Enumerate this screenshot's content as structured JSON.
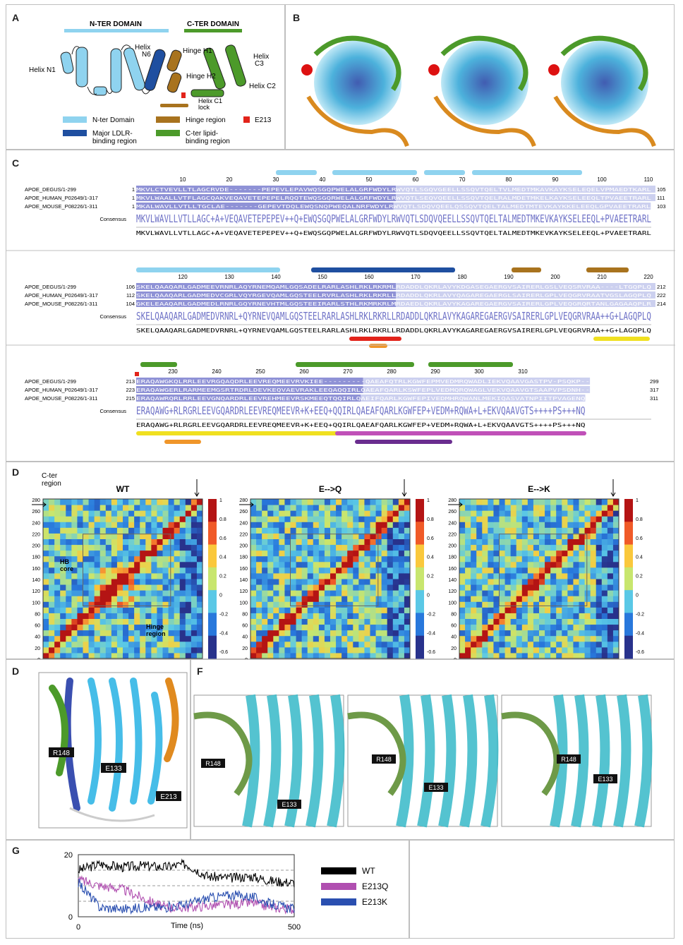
{
  "panels": {
    "A": {
      "label": "A",
      "nter_domain": "N-TER DOMAIN",
      "cter_domain": "C-TER DOMAIN",
      "helix_n1": "Helix N1",
      "helix_n6a": "Helix",
      "helix_n6b": "N6",
      "hinge_h1": "Hinge H1",
      "hinge_h2": "Hinge H2",
      "helix_c3a": "Helix",
      "helix_c3b": "C3",
      "helix_c2": "Helix C2",
      "helix_c1a": "Helix C1",
      "helix_c1b": "lock",
      "legend": [
        {
          "label": "N-ter Domain",
          "color": "#8fd3ef"
        },
        {
          "label": "Hinge region",
          "color": "#a8731e"
        },
        {
          "label": "E213",
          "color": "#e2231a"
        },
        {
          "label": "Major LDLR-",
          "label2": "binding region",
          "color": "#1f4fa0"
        },
        {
          "label": "C-ter lipid-",
          "label2": "binding region",
          "color": "#4c9a2a"
        }
      ]
    },
    "B": {
      "label": "B"
    },
    "C": {
      "label": "C",
      "blocks": [
        {
          "ruler": [
            "10",
            "20",
            "30",
            "40",
            "50",
            "60",
            "70",
            "80",
            "90",
            "100",
            "110"
          ],
          "rows": [
            {
              "name": "APOE_DEGUS/1-299",
              "start": "1",
              "seq": "MKVLCTVEVLLTLAGCRVDE-------PEPEVLEPAVWQSGQPWELALGRFWDYLRWVQTLSGQVGEELLSSQVTQELTVLMEDTMKAVKAYKSELEQELVPMAEDTKARL",
              "end": "105"
            },
            {
              "name": "APOE_HUMAN_P02649/1-317",
              "start": "1",
              "seq": "MKVLWAALLVTFLAGCQAKVEQAVETEPEPELRQQTEWQSGQRWELALGRFWDYLRWVQTLSEQVQEELLSSQVTQELRALMDETMKELKAYKSELEEQLTPVAEETRARL",
              "end": "111"
            },
            {
              "name": "APOE_MOUSE_P08226/1-311",
              "start": "1",
              "seq": "MKALWAVLLVTLLTGCLAE-------GEPEVTDQLEWQSNQPWEQALNRFWDYLRWVQTLSDQVQEELQSSQVTQELTALMEDTMTEVKAYKKELEEQLGPVAEETRARL",
              "end": "103"
            }
          ],
          "consensus_label": "Consensus",
          "consensus": "MKVLWAVLLVTLLAGC+A+VEQAVETEPEPEV++Q+EWQSGQPWELALGRFWDYLRWVQTLSDQVQEELLSSQVTQELTALMEDTMKEVKAYKSELEEQL+PVAEETRARL"
        },
        {
          "ruler": [
            "120",
            "130",
            "140",
            "150",
            "160",
            "170",
            "180",
            "190",
            "200",
            "210",
            "220"
          ],
          "rows": [
            {
              "name": "APOE_DEGUS/1-299",
              "start": "106",
              "seq": "SKELQAAQARLGADMEEVRNRLAQYRNEMQAMLGQSADELRARLASHLRKLRKRMLRDADDLQKRLAVYKDGASEGAERGVSAIRERLGSLVEQSRVRAA----LTGQPLQ",
              "end": "212"
            },
            {
              "name": "APOE_HUMAN_P02649/1-317",
              "start": "112",
              "seq": "SKELQAAQARLGADMEDVCGRLVQYRGEVQAMLGQSTEELRVRLASHLRKLRKRLLRDADDLQKRLAVYQAGAREGAERGLSAIRERLGPLVEQGRVRAATVGSLAGQPLQ",
              "end": "222"
            },
            {
              "name": "APOE_MOUSE_P08226/1-311",
              "start": "104",
              "seq": "GKELEAAQARLGADMEDLRNRLGQYRNEVHTMLGQSTEEIRARLSTHLRKMRKRLMRDAEDLQKRLAVYKAGAREGAERGVSAIRERLGPLVEQGRQRTANLGAGAAQPLR",
              "end": "214"
            }
          ],
          "consensus_label": "Consensus",
          "consensus": "SKELQAAQARLGADMEDVRNRL+QYRNEVQAMLGQSTEELRARLASHLRKLRKRLLRDADDLQKRLAVYKAGAREGAERGVSAIRERLGPLVEQGRVRAA++G+LAGQPLQ"
        },
        {
          "ruler": [
            "230",
            "240",
            "250",
            "260",
            "270",
            "280",
            "290",
            "300",
            "310"
          ],
          "rows": [
            {
              "name": "APOE_DEGUS/1-299",
              "start": "213",
              "seq": "ERAQAWGKQLRRLEEVRGQAQDRLEEVREQMEEVRVKIEE---------QAEAFQTRLKGWFEPMVEDMRQWADLIEKVQAAVGASTPV-PSQKP--",
              "end": "299"
            },
            {
              "name": "APOE_HUMAN_P02649/1-317",
              "start": "223",
              "seq": "ERAQAWGERLRARMEEMGSRTRDRLDEVKEQVAEVRAKLEEQAQQIRLQAEAFQARLKSWFEPLVEDMQRQWAGLVEKVQAAVGTSAAPVPSDNH--",
              "end": "317"
            },
            {
              "name": "APOE_MOUSE_P08226/1-311",
              "start": "215",
              "seq": "ERAQAWRQRLRRLEEVGNQARDRLEEVREHMEEVRSKMEEQTQQIRLQAEIFQARLKGWFEPIVEDMHRQWANLMEKIQASVATNPIITPVAGENQ",
              "end": "311"
            }
          ],
          "consensus_label": "Consensus",
          "consensus": "ERAQAWG+RLRGRLEEVGQARDRLEEVREQMEEVR+K+EEQ+QQIRLQAEAFQARLKGWFEP+VEDM+RQWA+L+EKVQAAVGTS++++PS+++NQ"
        }
      ]
    },
    "D": {
      "label": "D",
      "region_label_a": "C-ter",
      "region_label_b": "region",
      "hb_a": "HB",
      "hb_b": "core",
      "hinge_a": "Hinge",
      "hinge_b": "region",
      "titles": [
        "WT",
        "E-->Q",
        "E-->K"
      ],
      "y_ticks": [
        "280",
        "260",
        "240",
        "220",
        "200",
        "180",
        "160",
        "140",
        "120",
        "100",
        "80",
        "60",
        "40",
        "20",
        "0"
      ],
      "x_ticks": [
        "0",
        "20",
        "40",
        "60",
        "80",
        "100",
        "120",
        "140",
        "160",
        "180",
        "200",
        "220",
        "240",
        "260",
        "280"
      ],
      "cbar_ticks": [
        "1",
        "0.8",
        "0.6",
        "0.4",
        "0.2",
        "0",
        "-0.2",
        "-0.4",
        "-0.6"
      ]
    },
    "D2": {
      "label": "D",
      "r148": "R148",
      "e133": "E133",
      "e213": "E213"
    },
    "F": {
      "label": "F",
      "r148": "R148",
      "e133": "E133"
    },
    "G": {
      "label": "G",
      "y_top": "20",
      "y_bottom": "0",
      "x_left": "0",
      "x_right": "500",
      "xlabel": "Time (ns)",
      "legend": [
        {
          "label": "WT",
          "color": "#000000"
        },
        {
          "label": "E213Q",
          "color": "#b04fb0"
        },
        {
          "label": "E213K",
          "color": "#2a4fb0"
        }
      ]
    }
  },
  "chart_data": [
    {
      "type": "heatmap",
      "title": "WT",
      "xlim": [
        0,
        280
      ],
      "ylim": [
        0,
        280
      ],
      "colorbar": [
        -0.6,
        1
      ],
      "annotations": [
        "HB core",
        "Hinge region",
        "C-ter region"
      ]
    },
    {
      "type": "heatmap",
      "title": "E-->Q",
      "xlim": [
        0,
        280
      ],
      "ylim": [
        0,
        280
      ],
      "colorbar": [
        -0.6,
        1
      ]
    },
    {
      "type": "heatmap",
      "title": "E-->K",
      "xlim": [
        0,
        280
      ],
      "ylim": [
        0,
        280
      ],
      "colorbar": [
        -0.6,
        1
      ]
    },
    {
      "type": "line",
      "xlabel": "Time (ns)",
      "xlim": [
        0,
        500
      ],
      "ylim": [
        0,
        20
      ],
      "x": [
        0,
        50,
        100,
        150,
        200,
        250,
        300,
        350,
        400,
        450,
        500
      ],
      "series": [
        {
          "name": "WT",
          "values": [
            15,
            17,
            16,
            16.5,
            16,
            17,
            13,
            12.5,
            13,
            11.5,
            11
          ]
        },
        {
          "name": "E213Q",
          "values": [
            12,
            10,
            9,
            6,
            3,
            3,
            3.5,
            4,
            4.5,
            3,
            2.5
          ]
        },
        {
          "name": "E213K",
          "values": [
            11,
            3,
            2.5,
            3,
            3,
            4,
            6,
            7,
            6.5,
            4,
            2.5
          ]
        }
      ]
    }
  ]
}
